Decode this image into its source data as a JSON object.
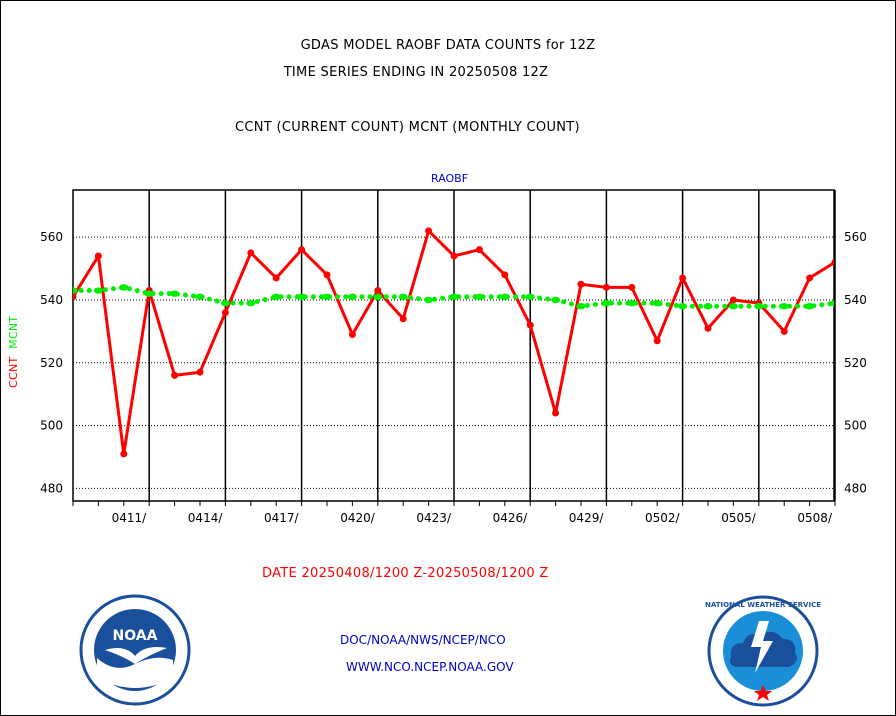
{
  "header": {
    "title": "GDAS MODEL RAOBF DATA COUNTS for 12Z",
    "subtitle": "TIME SERIES ENDING IN 20250508 12Z",
    "series_desc": "CCNT (CURRENT COUNT) MCNT (MONTHLY COUNT)"
  },
  "footer": {
    "date_range": "DATE 20250408/1200 Z-20250508/1200 Z",
    "credit_line1": "DOC/NOAA/NWS/NCEP/NCO",
    "credit_line2": "WWW.NCO.NCEP.NOAA.GOV",
    "noaa_logo_text": "NOAA",
    "nws_logo_text": "NATIONAL WEATHER SERVICE"
  },
  "colors": {
    "ccnt": "#ff0000",
    "mcnt": "#00ee00",
    "legend": "#0000c8",
    "grid": "#000000"
  },
  "chart_data": {
    "type": "line",
    "legend_label": "RAOBF",
    "ylabel_ccnt": "CCNT",
    "ylabel_mcnt": "MCNT",
    "ylim": [
      476,
      575
    ],
    "yticks": [
      480,
      500,
      520,
      540,
      560
    ],
    "x_day_range": [
      0,
      30
    ],
    "xtick_labels": [
      "0411/",
      "0414/",
      "0417/",
      "0420/",
      "0423/",
      "0426/",
      "0429/",
      "0502/",
      "0505/",
      "0508/"
    ],
    "xtick_days": [
      3,
      6,
      9,
      12,
      15,
      18,
      21,
      24,
      27,
      30
    ],
    "grid": true,
    "series": [
      {
        "name": "CCNT",
        "style": "solid-line-dots",
        "x": [
          0,
          1,
          2,
          3,
          4,
          5,
          6,
          7,
          8,
          9,
          10,
          11,
          12,
          13,
          14,
          15,
          16,
          17,
          18,
          19,
          20,
          21,
          22,
          23,
          24,
          25,
          26,
          27,
          28,
          29,
          30
        ],
        "values": [
          541,
          554,
          491,
          543,
          516,
          517,
          536,
          555,
          547,
          556,
          548,
          529,
          543,
          534,
          562,
          554,
          556,
          548,
          532,
          504,
          545,
          544,
          544,
          527,
          547,
          531,
          540,
          539,
          530,
          547,
          552
        ]
      },
      {
        "name": "MCNT",
        "style": "dotted",
        "x": [
          0,
          1,
          2,
          3,
          4,
          5,
          6,
          7,
          8,
          9,
          10,
          11,
          12,
          13,
          14,
          15,
          16,
          17,
          18,
          19,
          20,
          21,
          22,
          23,
          24,
          25,
          26,
          27,
          28,
          29,
          30
        ],
        "values": [
          543,
          543,
          544,
          542,
          542,
          541,
          539,
          539,
          541,
          541,
          541,
          541,
          541,
          541,
          540,
          541,
          541,
          541,
          541,
          540,
          538,
          539,
          539,
          539,
          538,
          538,
          538,
          538,
          538,
          538,
          539
        ]
      }
    ]
  }
}
